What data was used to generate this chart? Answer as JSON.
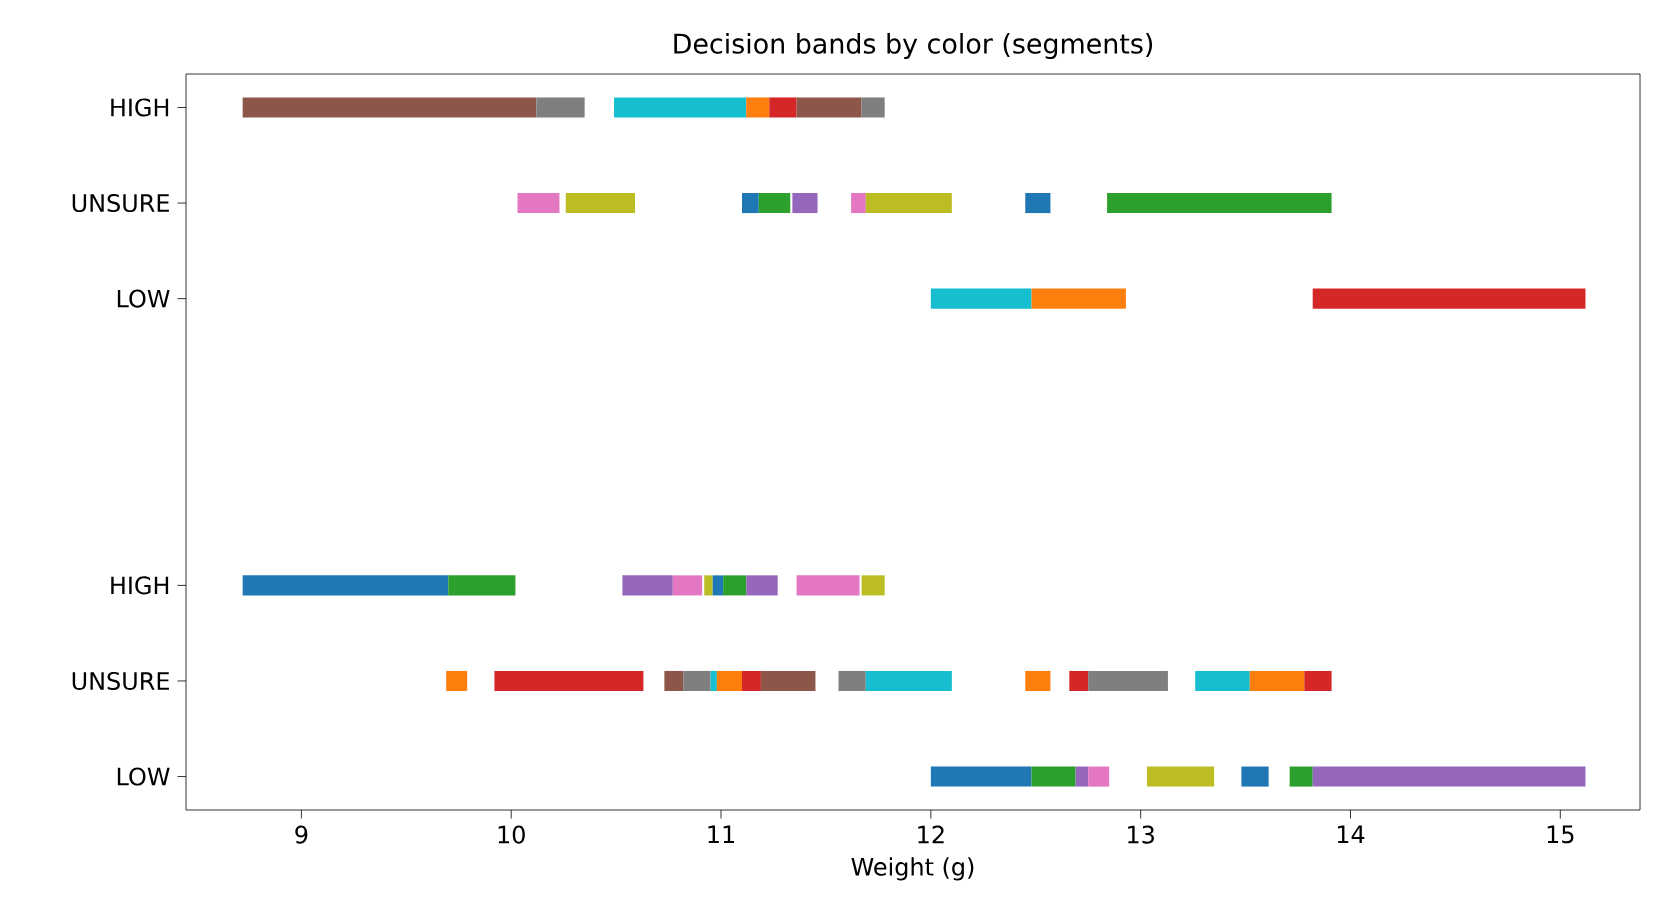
{
  "chart_data": {
    "type": "bar",
    "orientation": "horizontal",
    "title": "Decision bands by color (segments)",
    "xlabel": "Weight (g)",
    "categories": [
      "HIGH",
      "UNSURE",
      "LOW",
      null,
      null,
      "HIGH",
      "UNSURE",
      "LOW"
    ],
    "xlim": [
      8.45,
      15.38
    ],
    "xticks": [
      9,
      10,
      11,
      12,
      13,
      14,
      15
    ],
    "series": [
      {
        "colors": [
          "#8c564b",
          "#e377c2",
          "#17becf",
          null,
          null,
          "#1f77b4",
          "#ff7f0e",
          "#1f77b4"
        ],
        "base": [
          8.72,
          10.03,
          12.0,
          null,
          null,
          8.72,
          9.69,
          12.0
        ],
        "values": [
          1.4,
          0.2,
          0.48,
          null,
          null,
          0.98,
          0.1,
          0.48
        ]
      },
      {
        "colors": [
          "#7f7f7f",
          "#bcbd22",
          "#ff7f0e",
          null,
          null,
          "#2ca02c",
          "#d62728",
          "#2ca02c"
        ],
        "base": [
          10.12,
          10.26,
          12.48,
          null,
          null,
          9.7,
          9.92,
          12.48
        ],
        "values": [
          0.23,
          0.33,
          0.45,
          null,
          null,
          0.32,
          0.71,
          0.21
        ]
      },
      {
        "colors": [
          "#17becf",
          "#1f77b4",
          "#d62728",
          null,
          null,
          "#9467bd",
          "#8c564b",
          "#9467bd"
        ],
        "base": [
          10.49,
          11.1,
          13.82,
          null,
          null,
          10.53,
          10.73,
          12.69
        ],
        "values": [
          0.63,
          0.08,
          1.3,
          null,
          null,
          0.24,
          0.09,
          0.06
        ]
      },
      {
        "colors": [
          "#ff7f0e",
          "#2ca02c",
          null,
          null,
          null,
          "#e377c2",
          "#7f7f7f",
          "#e377c2"
        ],
        "base": [
          11.12,
          11.18,
          null,
          null,
          null,
          10.77,
          10.82,
          12.75
        ],
        "values": [
          0.11,
          0.15,
          null,
          null,
          null,
          0.14,
          0.13,
          0.1
        ]
      },
      {
        "colors": [
          "#d62728",
          "#9467bd",
          null,
          null,
          null,
          "#bcbd22",
          "#17becf",
          "#bcbd22"
        ],
        "base": [
          11.23,
          11.34,
          null,
          null,
          null,
          10.92,
          10.95,
          13.03
        ],
        "values": [
          0.13,
          0.12,
          null,
          null,
          null,
          0.04,
          0.03,
          0.32
        ]
      },
      {
        "colors": [
          "#8c564b",
          "#e377c2",
          null,
          null,
          null,
          "#1f77b4",
          "#ff7f0e",
          "#1f77b4"
        ],
        "base": [
          11.36,
          11.62,
          null,
          null,
          null,
          10.96,
          10.98,
          13.48
        ],
        "values": [
          0.31,
          0.07,
          null,
          null,
          null,
          0.05,
          0.12,
          0.13
        ]
      },
      {
        "colors": [
          "#7f7f7f",
          "#bcbd22",
          null,
          null,
          null,
          "#2ca02c",
          "#d62728",
          "#2ca02c"
        ],
        "base": [
          11.67,
          11.69,
          null,
          null,
          null,
          11.01,
          11.1,
          13.71
        ],
        "values": [
          0.11,
          0.41,
          null,
          null,
          null,
          0.11,
          0.09,
          0.11
        ]
      },
      {
        "colors": [
          null,
          "#1f77b4",
          null,
          null,
          null,
          "#9467bd",
          "#8c564b",
          "#9467bd"
        ],
        "base": [
          null,
          12.45,
          null,
          null,
          null,
          11.12,
          11.19,
          13.82
        ],
        "values": [
          null,
          0.12,
          null,
          null,
          null,
          0.15,
          0.26,
          1.3
        ]
      },
      {
        "colors": [
          null,
          "#2ca02c",
          null,
          null,
          null,
          "#e377c2",
          "#7f7f7f",
          null
        ],
        "base": [
          null,
          12.84,
          null,
          null,
          null,
          11.36,
          11.56,
          null
        ],
        "values": [
          null,
          1.07,
          null,
          null,
          null,
          0.3,
          0.13,
          null
        ]
      },
      {
        "colors": [
          null,
          null,
          null,
          null,
          null,
          "#bcbd22",
          "#17becf",
          null
        ],
        "base": [
          null,
          null,
          null,
          null,
          null,
          11.67,
          11.69,
          null
        ],
        "values": [
          null,
          null,
          null,
          null,
          null,
          0.11,
          0.41,
          null
        ]
      },
      {
        "colors": [
          null,
          null,
          null,
          null,
          null,
          null,
          "#ff7f0e",
          null
        ],
        "base": [
          null,
          null,
          null,
          null,
          null,
          null,
          12.45,
          null
        ],
        "values": [
          null,
          null,
          null,
          null,
          null,
          null,
          0.12,
          null
        ]
      },
      {
        "colors": [
          null,
          null,
          null,
          null,
          null,
          null,
          "#d62728",
          null
        ],
        "base": [
          null,
          null,
          null,
          null,
          null,
          null,
          12.66,
          null
        ],
        "values": [
          null,
          null,
          null,
          null,
          null,
          null,
          0.09,
          null
        ]
      },
      {
        "colors": [
          null,
          null,
          null,
          null,
          null,
          null,
          "#7f7f7f",
          null
        ],
        "base": [
          null,
          null,
          null,
          null,
          null,
          null,
          12.75,
          null
        ],
        "values": [
          null,
          null,
          null,
          null,
          null,
          null,
          0.38,
          null
        ]
      },
      {
        "colors": [
          null,
          null,
          null,
          null,
          null,
          null,
          "#17becf",
          null
        ],
        "base": [
          null,
          null,
          null,
          null,
          null,
          null,
          13.26,
          null
        ],
        "values": [
          null,
          null,
          null,
          null,
          null,
          null,
          0.26,
          null
        ]
      },
      {
        "colors": [
          null,
          null,
          null,
          null,
          null,
          null,
          "#ff7f0e",
          null
        ],
        "base": [
          null,
          null,
          null,
          null,
          null,
          null,
          13.52,
          null
        ],
        "values": [
          null,
          null,
          null,
          null,
          null,
          null,
          0.26,
          null
        ]
      },
      {
        "colors": [
          null,
          null,
          null,
          null,
          null,
          null,
          "#d62728",
          null
        ],
        "base": [
          null,
          null,
          null,
          null,
          null,
          null,
          13.78,
          null
        ],
        "values": [
          null,
          null,
          null,
          null,
          null,
          null,
          0.13,
          null
        ]
      }
    ]
  }
}
